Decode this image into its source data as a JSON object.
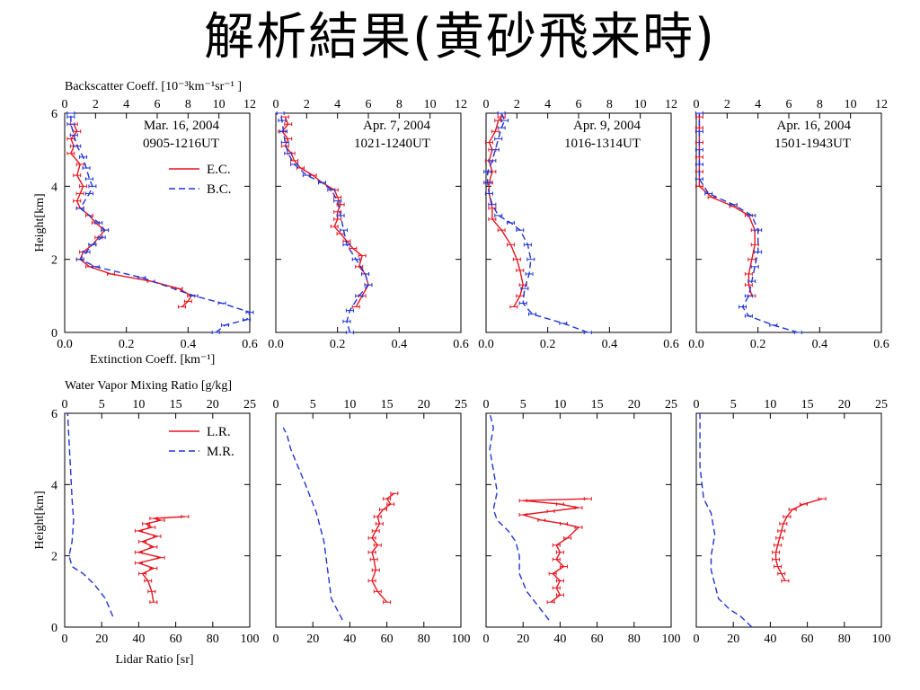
{
  "slide": {
    "title": "解析結果(黄砂飛来時)"
  },
  "labels": {
    "backscatter_axis": "Backscatter Coeff. [10⁻³km⁻¹sr⁻¹ ]",
    "extinction_axis": "Extinction Coeff. [km⁻¹]",
    "height_axis": "Height[km]",
    "wv_axis": "Water Vapor Mixing Ratio [g/kg]",
    "lidar_axis": "Lidar Ratio [sr]"
  },
  "colors": {
    "red": "#e8141e",
    "blue": "#1f35d8",
    "frame": "#000000"
  },
  "chart_data": [
    {
      "type": "line",
      "panel": "top-1",
      "date": "Mar. 16, 2004",
      "time": "0905-1216UT",
      "ylabel": "Height[km]",
      "ylim": [
        0,
        6
      ],
      "xlim_bottom": [
        0.0,
        0.6
      ],
      "xlim_top": [
        0,
        12
      ],
      "xticks_bottom": [
        "0.0",
        "0.2",
        "0.4",
        "0.6"
      ],
      "xticks_top": [
        "0",
        "2",
        "4",
        "6",
        "8",
        "10",
        "12"
      ],
      "yticks": [
        "0",
        "2",
        "4",
        "6"
      ],
      "legend": [
        "E.C.",
        "B.C."
      ],
      "legend_position": "top-right",
      "series": [
        {
          "name": "E.C.",
          "style": "solid-red",
          "axis": "bottom",
          "errorbars": true,
          "x": [
            0.38,
            0.4,
            0.41,
            0.37,
            0.28,
            0.15,
            0.08,
            0.05,
            0.06,
            0.09,
            0.11,
            0.13,
            0.1,
            0.08,
            0.05,
            0.04,
            0.05,
            0.06,
            0.04,
            0.05,
            0.02,
            0.03,
            0.02,
            0.04,
            0.03
          ],
          "y": [
            0.7,
            0.85,
            1.0,
            1.2,
            1.4,
            1.6,
            1.8,
            2.0,
            2.2,
            2.4,
            2.6,
            2.8,
            3.0,
            3.2,
            3.4,
            3.6,
            3.8,
            4.0,
            4.3,
            4.6,
            4.9,
            5.1,
            5.3,
            5.5,
            5.7
          ]
        },
        {
          "name": "B.C.",
          "style": "dashed-blue",
          "axis": "top",
          "errorbars": true,
          "x": [
            9.8,
            10.4,
            11.8,
            12.0,
            10.2,
            8.4,
            5.0,
            2.0,
            1.0,
            1.4,
            1.8,
            2.4,
            2.6,
            2.2,
            1.0,
            1.6,
            1.8,
            1.6,
            1.4,
            1.2,
            0.8,
            0.6,
            0.4,
            0.4,
            0.4
          ],
          "y": [
            0.0,
            0.2,
            0.35,
            0.55,
            0.8,
            1.0,
            1.5,
            1.8,
            2.0,
            2.2,
            2.4,
            2.6,
            2.8,
            3.0,
            3.4,
            3.8,
            4.0,
            4.2,
            4.5,
            4.8,
            5.1,
            5.4,
            5.7,
            5.9,
            6.0
          ]
        }
      ]
    },
    {
      "type": "line",
      "panel": "top-2",
      "date": "Apr. 7, 2004",
      "time": "1021-1240UT",
      "ylim": [
        0,
        6
      ],
      "xlim_bottom": [
        0.0,
        0.6
      ],
      "xlim_top": [
        0,
        12
      ],
      "xticks_bottom": [
        "0.0",
        "0.2",
        "0.4",
        "0.6"
      ],
      "xticks_top": [
        "0",
        "2",
        "4",
        "6",
        "8",
        "10",
        "12"
      ],
      "series": [
        {
          "name": "E.C.",
          "style": "solid-red",
          "axis": "bottom",
          "errorbars": true,
          "x": [
            0.26,
            0.28,
            0.3,
            0.29,
            0.27,
            0.28,
            0.25,
            0.23,
            0.21,
            0.19,
            0.2,
            0.2,
            0.21,
            0.2,
            0.19,
            0.15,
            0.12,
            0.08,
            0.06,
            0.05,
            0.03,
            0.04,
            0.02,
            0.04,
            0.03
          ],
          "y": [
            0.7,
            1.0,
            1.3,
            1.6,
            1.8,
            2.1,
            2.3,
            2.5,
            2.7,
            2.9,
            3.1,
            3.3,
            3.5,
            3.7,
            3.9,
            4.1,
            4.3,
            4.5,
            4.7,
            4.9,
            5.1,
            5.3,
            5.5,
            5.7,
            5.9
          ]
        },
        {
          "name": "B.C.",
          "style": "dashed-blue",
          "axis": "top",
          "errorbars": true,
          "x": [
            4.8,
            4.6,
            4.8,
            5.4,
            6.0,
            5.8,
            5.2,
            4.6,
            4.4,
            4.2,
            4.0,
            3.6,
            3.0,
            2.0,
            1.2,
            0.8,
            0.6,
            0.5,
            0.4,
            0.3
          ],
          "y": [
            0.0,
            0.3,
            0.6,
            1.0,
            1.3,
            1.6,
            2.0,
            2.4,
            2.8,
            3.2,
            3.6,
            3.9,
            4.1,
            4.3,
            4.6,
            4.9,
            5.2,
            5.5,
            5.8,
            6.0
          ]
        }
      ]
    },
    {
      "type": "line",
      "panel": "top-3",
      "date": "Apr. 9, 2004",
      "time": "1016-1314UT",
      "ylim": [
        0,
        6
      ],
      "xlim_bottom": [
        0.0,
        0.6
      ],
      "xlim_top": [
        0,
        12
      ],
      "xticks_bottom": [
        "0.0",
        "0.2",
        "0.4",
        "0.6"
      ],
      "xticks_top": [
        "0",
        "2",
        "4",
        "6",
        "8",
        "10",
        "12"
      ],
      "series": [
        {
          "name": "E.C.",
          "style": "solid-red",
          "axis": "bottom",
          "errorbars": true,
          "x": [
            0.09,
            0.11,
            0.12,
            0.11,
            0.1,
            0.08,
            0.05,
            0.02,
            0.02,
            0.01,
            0.01,
            0.02,
            0.01,
            0.02,
            0.01,
            0.03,
            0.04,
            0.05,
            0.05
          ],
          "y": [
            0.7,
            1.0,
            1.3,
            1.7,
            2.0,
            2.4,
            2.8,
            3.1,
            3.4,
            3.8,
            4.1,
            4.4,
            4.7,
            5.0,
            5.2,
            5.5,
            5.8,
            5.9,
            6.0
          ]
        },
        {
          "name": "B.C.",
          "style": "dashed-blue",
          "axis": "top",
          "errorbars": true,
          "x": [
            6.6,
            5.0,
            3.0,
            2.4,
            2.5,
            2.8,
            2.9,
            2.7,
            2.2,
            1.6,
            0.8,
            0.4,
            0.2,
            0.1,
            0.1,
            0.4,
            0.6,
            0.8,
            1.0,
            1.2,
            1.0
          ],
          "y": [
            0.0,
            0.25,
            0.5,
            0.8,
            1.2,
            1.6,
            2.0,
            2.4,
            2.8,
            3.0,
            3.2,
            3.5,
            3.8,
            4.1,
            4.4,
            4.7,
            5.0,
            5.3,
            5.6,
            5.8,
            6.0
          ]
        }
      ]
    },
    {
      "type": "line",
      "panel": "top-4",
      "date": "Apr. 16, 2004",
      "time": "1501-1943UT",
      "ylim": [
        0,
        6
      ],
      "xlim_bottom": [
        0.0,
        0.6
      ],
      "xlim_top": [
        0,
        12
      ],
      "xticks_bottom": [
        "0.0",
        "0.2",
        "0.4",
        "0.6"
      ],
      "xticks_top": [
        "0",
        "2",
        "4",
        "6",
        "8",
        "10",
        "12"
      ],
      "series": [
        {
          "name": "E.C.",
          "style": "solid-red",
          "axis": "bottom",
          "errorbars": true,
          "x": [
            0.18,
            0.17,
            0.17,
            0.18,
            0.19,
            0.19,
            0.17,
            0.12,
            0.05,
            0.01,
            0.01,
            0.01,
            0.01,
            0.01,
            0.01,
            0.01
          ],
          "y": [
            1.0,
            1.3,
            1.6,
            2.0,
            2.4,
            2.8,
            3.2,
            3.45,
            3.7,
            4.0,
            4.4,
            4.8,
            5.2,
            5.6,
            5.9,
            6.0
          ]
        },
        {
          "name": "B.C.",
          "style": "dashed-blue",
          "axis": "top",
          "errorbars": true,
          "x": [
            6.6,
            5.0,
            3.4,
            3.0,
            3.4,
            3.6,
            3.8,
            4.0,
            4.0,
            3.6,
            2.4,
            0.8,
            0.2,
            0.2,
            0.2,
            0.2,
            0.2
          ],
          "y": [
            0.0,
            0.2,
            0.45,
            0.7,
            1.0,
            1.4,
            1.8,
            2.2,
            2.8,
            3.2,
            3.5,
            3.8,
            4.2,
            4.6,
            5.0,
            5.5,
            6.0
          ]
        }
      ]
    },
    {
      "type": "line",
      "panel": "bottom-1",
      "ylabel": "Height[km]",
      "ylim": [
        0,
        6
      ],
      "xlim_bottom": [
        0,
        100
      ],
      "xlim_top": [
        0,
        25
      ],
      "xticks_bottom": [
        "0",
        "20",
        "40",
        "60",
        "80",
        "100"
      ],
      "xticks_top": [
        "0",
        "5",
        "10",
        "15",
        "20",
        "25"
      ],
      "yticks": [
        "0",
        "2",
        "4",
        "6"
      ],
      "legend": [
        "L.R.",
        "M.R."
      ],
      "legend_position": "top-right",
      "series": [
        {
          "name": "L.R.",
          "style": "solid-red",
          "axis": "bottom",
          "errorbars": true,
          "x": [
            48,
            47,
            45,
            42,
            48,
            40,
            52,
            40,
            48,
            42,
            50,
            40,
            47,
            44,
            52,
            48,
            65
          ],
          "y": [
            0.7,
            1.0,
            1.3,
            1.5,
            1.65,
            1.8,
            1.95,
            2.1,
            2.25,
            2.4,
            2.55,
            2.7,
            2.8,
            2.9,
            3.0,
            3.05,
            3.1
          ]
        },
        {
          "name": "M.R.",
          "style": "dashed-blue",
          "axis": "top",
          "errorbars": false,
          "x": [
            6.5,
            5.5,
            4.0,
            2.5,
            1.0,
            0.6,
            1.0,
            1.2,
            1.0,
            0.8,
            0.6,
            0.4
          ],
          "y": [
            0.3,
            0.8,
            1.2,
            1.5,
            1.7,
            2.0,
            2.4,
            3.0,
            3.6,
            4.4,
            5.2,
            6.0
          ]
        }
      ]
    },
    {
      "type": "line",
      "panel": "bottom-2",
      "ylim": [
        0,
        6
      ],
      "xlim_bottom": [
        0,
        100
      ],
      "xlim_top": [
        0,
        25
      ],
      "xticks_bottom": [
        "0",
        "20",
        "40",
        "60",
        "80",
        "100"
      ],
      "xticks_top": [
        "0",
        "5",
        "10",
        "15",
        "20",
        "25"
      ],
      "series": [
        {
          "name": "L.R.",
          "style": "solid-red",
          "axis": "bottom",
          "errorbars": true,
          "x": [
            60,
            55,
            52,
            54,
            53,
            52,
            55,
            52,
            54,
            56,
            55,
            58,
            62,
            60,
            64
          ],
          "y": [
            0.7,
            1.0,
            1.3,
            1.6,
            1.9,
            2.1,
            2.3,
            2.5,
            2.7,
            2.9,
            3.1,
            3.3,
            3.45,
            3.6,
            3.75
          ]
        },
        {
          "name": "M.R.",
          "style": "dashed-blue",
          "axis": "top",
          "errorbars": false,
          "x": [
            9.0,
            7.5,
            7.0,
            6.5,
            5.5,
            4.0,
            2.8,
            2.0,
            1.5,
            1.0
          ],
          "y": [
            0.2,
            0.8,
            1.6,
            2.4,
            3.2,
            4.0,
            4.6,
            5.0,
            5.4,
            5.6
          ]
        }
      ]
    },
    {
      "type": "line",
      "panel": "bottom-3",
      "ylim": [
        0,
        6
      ],
      "xlim_bottom": [
        0,
        100
      ],
      "xlim_top": [
        0,
        25
      ],
      "xticks_bottom": [
        "0",
        "20",
        "40",
        "60",
        "80",
        "100"
      ],
      "xticks_top": [
        "0",
        "5",
        "10",
        "15",
        "20",
        "25"
      ],
      "series": [
        {
          "name": "L.R.",
          "style": "solid-red",
          "axis": "bottom",
          "errorbars": true,
          "x": [
            35,
            40,
            38,
            40,
            36,
            42,
            38,
            40,
            38,
            44,
            50,
            42,
            30,
            20,
            35,
            50,
            40,
            20,
            55
          ],
          "y": [
            0.7,
            0.9,
            1.1,
            1.3,
            1.5,
            1.7,
            1.9,
            2.1,
            2.3,
            2.5,
            2.8,
            2.9,
            3.0,
            3.15,
            3.25,
            3.35,
            3.45,
            3.55,
            3.6
          ]
        },
        {
          "name": "M.R.",
          "style": "dashed-blue",
          "axis": "top",
          "errorbars": false,
          "x": [
            8.5,
            7.0,
            5.5,
            4.5,
            4.5,
            4.0,
            3.0,
            1.5,
            1.0,
            1.5,
            1.0,
            0.5,
            1.0,
            0.5
          ],
          "y": [
            0.2,
            0.6,
            1.0,
            1.5,
            2.0,
            2.4,
            2.7,
            3.0,
            3.3,
            3.8,
            4.4,
            5.0,
            5.6,
            6.0
          ]
        }
      ]
    },
    {
      "type": "line",
      "panel": "bottom-4",
      "ylim": [
        0,
        6
      ],
      "xlim_bottom": [
        0,
        100
      ],
      "xlim_top": [
        0,
        25
      ],
      "xticks_bottom": [
        "0",
        "20",
        "40",
        "60",
        "80",
        "100"
      ],
      "xticks_top": [
        "0",
        "5",
        "10",
        "15",
        "20",
        "25"
      ],
      "series": [
        {
          "name": "L.R.",
          "style": "solid-red",
          "axis": "bottom",
          "errorbars": true,
          "x": [
            48,
            46,
            44,
            43,
            43,
            44,
            45,
            46,
            47,
            49,
            52,
            58,
            68
          ],
          "y": [
            1.3,
            1.5,
            1.7,
            1.9,
            2.1,
            2.3,
            2.5,
            2.7,
            2.9,
            3.1,
            3.3,
            3.45,
            3.6
          ]
        },
        {
          "name": "M.R.",
          "style": "dashed-blue",
          "axis": "top",
          "errorbars": false,
          "x": [
            7.5,
            6.0,
            4.5,
            3.0,
            2.5,
            2.0,
            2.0,
            2.5,
            2.0,
            1.0,
            0.5,
            0.5
          ],
          "y": [
            0.0,
            0.3,
            0.5,
            0.8,
            1.2,
            1.6,
            2.0,
            2.6,
            3.2,
            3.6,
            4.5,
            6.0
          ]
        }
      ]
    }
  ]
}
